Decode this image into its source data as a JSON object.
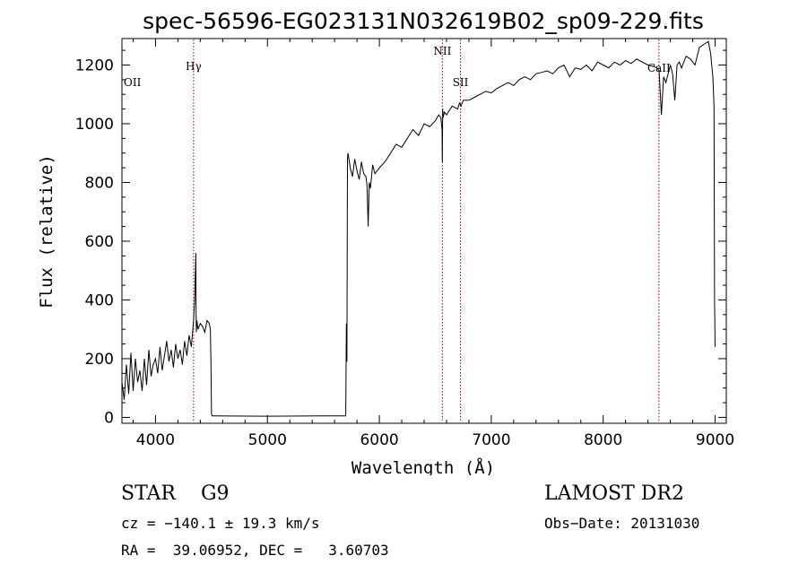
{
  "chart_data": {
    "type": "line",
    "title": "spec-56596-EG023131N032619B02_sp09-229.fits",
    "xlabel": "Wavelength (Å)",
    "ylabel": "Flux (relative)",
    "xlim": [
      3700,
      9100
    ],
    "ylim": [
      -20,
      1290
    ],
    "xticks": [
      4000,
      5000,
      6000,
      7000,
      8000,
      9000
    ],
    "yticks": [
      0,
      200,
      400,
      600,
      800,
      1000,
      1200
    ],
    "grid": false,
    "legend": "none",
    "series": [
      {
        "x": [
          3700,
          3720,
          3740,
          3760,
          3780,
          3800,
          3820,
          3840,
          3860,
          3880,
          3900,
          3920,
          3940,
          3960,
          3980,
          4000,
          4020,
          4040,
          4060,
          4080,
          4100,
          4120,
          4140,
          4160,
          4180,
          4200,
          4220,
          4240,
          4260,
          4280,
          4300,
          4320,
          4340,
          4350,
          4360,
          4362,
          4365,
          4370,
          4380,
          4400,
          4420,
          4440,
          4460,
          4480,
          4490,
          4495,
          4500,
          4505,
          4510,
          5000,
          5500,
          5700,
          5705,
          5710,
          5715,
          5720,
          5740,
          5760,
          5780,
          5800,
          5820,
          5840,
          5860,
          5880,
          5890,
          5900,
          5910,
          5920,
          5940,
          5960,
          5980,
          6000,
          6050,
          6100,
          6150,
          6200,
          6250,
          6300,
          6350,
          6400,
          6450,
          6500,
          6530,
          6550,
          6560,
          6563,
          6566,
          6570,
          6580,
          6600,
          6650,
          6700,
          6716,
          6730,
          6750,
          6800,
          6850,
          6900,
          6950,
          7000,
          7050,
          7100,
          7150,
          7200,
          7250,
          7300,
          7350,
          7400,
          7450,
          7500,
          7550,
          7600,
          7650,
          7700,
          7750,
          7800,
          7850,
          7900,
          7950,
          8000,
          8050,
          8100,
          8150,
          8200,
          8250,
          8300,
          8350,
          8400,
          8450,
          8480,
          8500,
          8520,
          8540,
          8560,
          8580,
          8600,
          8620,
          8640,
          8660,
          8680,
          8700,
          8740,
          8780,
          8820,
          8860,
          8900,
          8940,
          8960,
          8980,
          8990,
          8995,
          9000
        ],
        "values": [
          120,
          60,
          180,
          80,
          220,
          90,
          200,
          120,
          160,
          90,
          200,
          110,
          230,
          140,
          180,
          200,
          150,
          240,
          160,
          210,
          260,
          190,
          230,
          170,
          250,
          200,
          230,
          180,
          260,
          210,
          280,
          240,
          330,
          400,
          560,
          380,
          290,
          330,
          300,
          320,
          310,
          290,
          330,
          320,
          300,
          200,
          10,
          5,
          5,
          4,
          5,
          5,
          320,
          190,
          880,
          900,
          850,
          820,
          880,
          840,
          810,
          870,
          830,
          820,
          790,
          650,
          800,
          780,
          860,
          830,
          840,
          850,
          870,
          900,
          930,
          920,
          950,
          980,
          960,
          1000,
          990,
          1010,
          1030,
          1020,
          980,
          870,
          1050,
          1020,
          1040,
          1030,
          1060,
          1050,
          1070,
          1060,
          1080,
          1080,
          1090,
          1100,
          1110,
          1105,
          1120,
          1130,
          1140,
          1130,
          1150,
          1160,
          1150,
          1170,
          1175,
          1180,
          1170,
          1190,
          1200,
          1160,
          1190,
          1185,
          1200,
          1180,
          1210,
          1200,
          1190,
          1210,
          1200,
          1215,
          1205,
          1220,
          1210,
          1200,
          1195,
          1190,
          1180,
          1030,
          1160,
          1140,
          1170,
          1200,
          1170,
          1080,
          1200,
          1210,
          1190,
          1230,
          1220,
          1200,
          1260,
          1270,
          1280,
          1240,
          1160,
          1060,
          400,
          240
        ]
      }
    ],
    "line_markers": [
      {
        "label": "OII",
        "x": 3727
      },
      {
        "label": "Hγ",
        "x": 4340
      },
      {
        "label": "NII",
        "x": 6563
      },
      {
        "label": "SII",
        "x": 6725
      },
      {
        "label": "CaII",
        "x": 8498
      }
    ]
  },
  "info": {
    "class_line": "STAR    G9",
    "survey": "LAMOST DR2",
    "cz_line": "cz = −140.1 ± 19.3 km/s",
    "obs_date": "Obs−Date: 20131030",
    "coords": "RA =  39.06952, DEC =   3.60703"
  },
  "colors": {
    "line": "#000000",
    "marker": "#a00000",
    "background": "#ffffff"
  }
}
